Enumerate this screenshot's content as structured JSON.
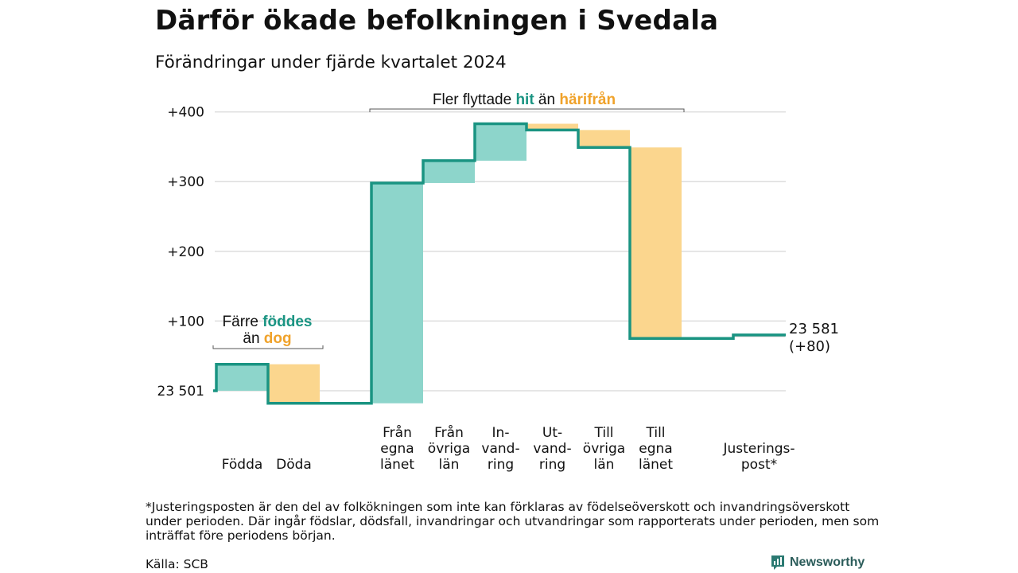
{
  "colors": {
    "increase": "#8dd5cb",
    "decrease": "#fbd68e",
    "adjustment": "#c8c8c8",
    "line": "#1a9482",
    "teal_text": "#1a9482",
    "orange_text": "#f0a22a",
    "grid": "#dddddd"
  },
  "chart_data": {
    "type": "waterfall",
    "title": "Därför ökade befolkningen i Svedala",
    "subtitle": "Förändringar under fjärde kvartalet 2024",
    "start_value": 23501,
    "start_label": "23 501",
    "end_label": "23 581",
    "end_change_label": "(+80)",
    "y_ticks": [
      {
        "value": 100,
        "label": "+100"
      },
      {
        "value": 200,
        "label": "+200"
      },
      {
        "value": 300,
        "label": "+300"
      },
      {
        "value": 400,
        "label": "+400"
      }
    ],
    "ylim": [
      0,
      400
    ],
    "bars": [
      {
        "label_lines": [
          "Födda"
        ],
        "delta": 38,
        "kind": "increase",
        "slot": 0
      },
      {
        "label_lines": [
          "Döda"
        ],
        "delta": -56,
        "kind": "decrease",
        "slot": 1
      },
      {
        "label_lines": [
          "Från",
          "egna",
          "länet"
        ],
        "delta": 316,
        "kind": "increase",
        "slot": 3
      },
      {
        "label_lines": [
          "Från",
          "övriga",
          "län"
        ],
        "delta": 32,
        "kind": "increase",
        "slot": 4
      },
      {
        "label_lines": [
          "In-",
          "vand-",
          "ring"
        ],
        "delta": 53,
        "kind": "increase",
        "slot": 5
      },
      {
        "label_lines": [
          "Ut-",
          "vand-",
          "ring"
        ],
        "delta": -9,
        "kind": "decrease",
        "slot": 6
      },
      {
        "label_lines": [
          "Till",
          "övriga",
          "län"
        ],
        "delta": -25,
        "kind": "decrease",
        "slot": 7
      },
      {
        "label_lines": [
          "Till",
          "egna",
          "länet"
        ],
        "delta": -274,
        "kind": "decrease",
        "slot": 8
      },
      {
        "label_lines": [
          "Justerings-",
          "post*"
        ],
        "delta": 5,
        "kind": "adjustment",
        "slot": 10
      }
    ],
    "annotations": {
      "births": {
        "line1_prefix": "Färre",
        "line1_highlight": "föddes",
        "line2_prefix": "än",
        "line2_highlight": "dog"
      },
      "migration": {
        "prefix": "Fler flyttade",
        "highlight1": "hit",
        "middle": "än",
        "highlight2": "härifrån"
      }
    }
  },
  "footnote": "*Justeringsposten är den del av folkökningen som inte kan förklaras av födelseöverskott och invandringsöverskott under perioden. Där ingår födslar, dödsfall, invandringar och utvandringar som rapporterats under perioden, men som inträffat före periodens början.",
  "source": "Källa: SCB",
  "brand": "Newsworthy"
}
